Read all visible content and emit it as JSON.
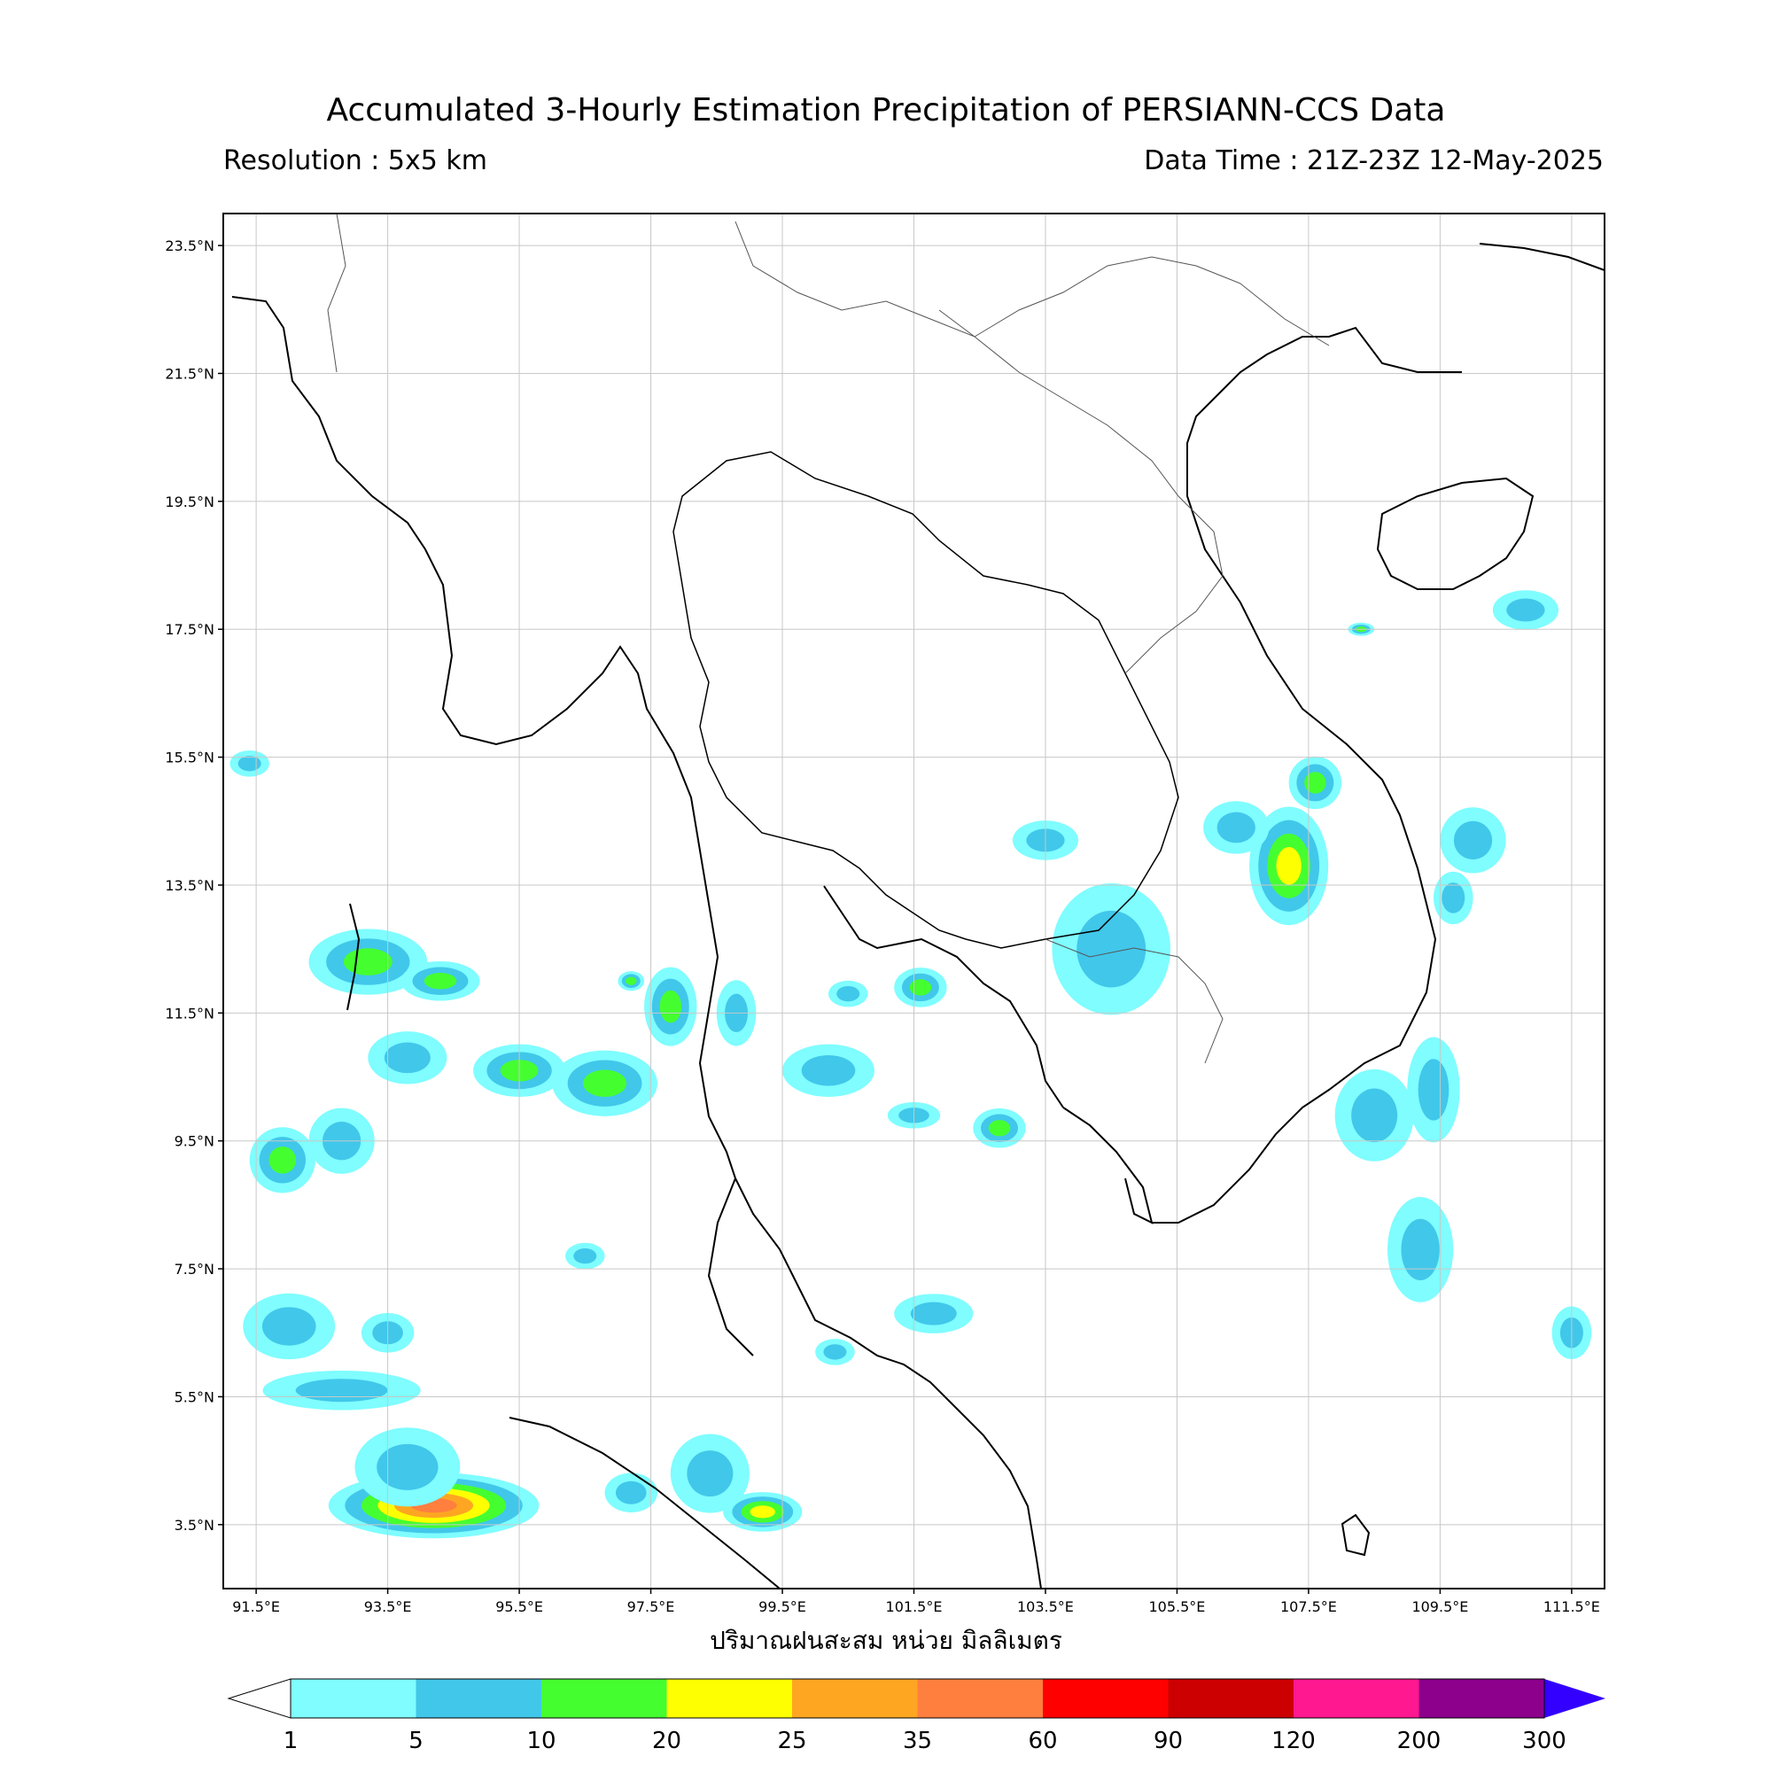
{
  "header": {
    "title": "Accumulated 3-Hourly Estimation Precipitation of PERSIANN-CCS Data",
    "resolution": "Resolution : 5x5 km",
    "data_time": "Data Time : 21Z-23Z 12-May-2025"
  },
  "map": {
    "lon_range": [
      91.0,
      112.0
    ],
    "lat_range": [
      2.5,
      23.5
    ],
    "lat_ticks": [
      {
        "value": 23.5,
        "label": "23.5°N"
      },
      {
        "value": 21.5,
        "label": "21.5°N"
      },
      {
        "value": 19.5,
        "label": "19.5°N"
      },
      {
        "value": 17.5,
        "label": "17.5°N"
      },
      {
        "value": 15.5,
        "label": "15.5°N"
      },
      {
        "value": 13.5,
        "label": "13.5°N"
      },
      {
        "value": 11.5,
        "label": "11.5°N"
      },
      {
        "value": 9.5,
        "label": "9.5°N"
      },
      {
        "value": 7.5,
        "label": "7.5°N"
      },
      {
        "value": 5.5,
        "label": "5.5°N"
      },
      {
        "value": 3.5,
        "label": "3.5°N"
      }
    ],
    "lon_ticks": [
      {
        "value": 91.5,
        "label": "91.5°E"
      },
      {
        "value": 93.5,
        "label": "93.5°E"
      },
      {
        "value": 95.5,
        "label": "95.5°E"
      },
      {
        "value": 97.5,
        "label": "97.5°E"
      },
      {
        "value": 99.5,
        "label": "99.5°E"
      },
      {
        "value": 101.5,
        "label": "101.5°E"
      },
      {
        "value": 103.5,
        "label": "103.5°E"
      },
      {
        "value": 105.5,
        "label": "105.5°E"
      },
      {
        "value": 107.5,
        "label": "107.5°E"
      },
      {
        "value": 109.5,
        "label": "109.5°E"
      },
      {
        "value": 111.5,
        "label": "111.5°E"
      }
    ],
    "grid": true,
    "rain_cells": [
      {
        "lon": 93.2,
        "lat": 12.3,
        "rx": 0.9,
        "ry": 0.5,
        "level": 2
      },
      {
        "lon": 94.3,
        "lat": 12.0,
        "rx": 0.6,
        "ry": 0.3,
        "level": 2
      },
      {
        "lon": 96.8,
        "lat": 10.4,
        "rx": 0.8,
        "ry": 0.5,
        "level": 2
      },
      {
        "lon": 95.5,
        "lat": 10.6,
        "rx": 0.7,
        "ry": 0.4,
        "level": 2
      },
      {
        "lon": 92.8,
        "lat": 9.5,
        "rx": 0.5,
        "ry": 0.5,
        "level": 1
      },
      {
        "lon": 93.8,
        "lat": 10.8,
        "rx": 0.6,
        "ry": 0.4,
        "level": 1
      },
      {
        "lon": 91.9,
        "lat": 9.2,
        "rx": 0.5,
        "ry": 0.5,
        "level": 2
      },
      {
        "lon": 97.8,
        "lat": 11.6,
        "rx": 0.4,
        "ry": 0.6,
        "level": 2
      },
      {
        "lon": 98.8,
        "lat": 11.5,
        "rx": 0.3,
        "ry": 0.5,
        "level": 1
      },
      {
        "lon": 100.2,
        "lat": 10.6,
        "rx": 0.7,
        "ry": 0.4,
        "level": 1
      },
      {
        "lon": 101.6,
        "lat": 11.9,
        "rx": 0.4,
        "ry": 0.3,
        "level": 2
      },
      {
        "lon": 100.5,
        "lat": 11.8,
        "rx": 0.3,
        "ry": 0.2,
        "level": 1
      },
      {
        "lon": 102.8,
        "lat": 9.7,
        "rx": 0.4,
        "ry": 0.3,
        "level": 2
      },
      {
        "lon": 101.5,
        "lat": 9.9,
        "rx": 0.4,
        "ry": 0.2,
        "level": 1
      },
      {
        "lon": 104.5,
        "lat": 12.5,
        "rx": 0.9,
        "ry": 1.0,
        "level": 1
      },
      {
        "lon": 103.5,
        "lat": 14.2,
        "rx": 0.5,
        "ry": 0.3,
        "level": 1
      },
      {
        "lon": 107.2,
        "lat": 13.8,
        "rx": 0.6,
        "ry": 0.9,
        "level": 3
      },
      {
        "lon": 106.4,
        "lat": 14.4,
        "rx": 0.5,
        "ry": 0.4,
        "level": 1
      },
      {
        "lon": 107.6,
        "lat": 15.1,
        "rx": 0.4,
        "ry": 0.4,
        "level": 2
      },
      {
        "lon": 110.0,
        "lat": 14.2,
        "rx": 0.5,
        "ry": 0.5,
        "level": 1
      },
      {
        "lon": 109.7,
        "lat": 13.3,
        "rx": 0.3,
        "ry": 0.4,
        "level": 1
      },
      {
        "lon": 108.5,
        "lat": 9.9,
        "rx": 0.6,
        "ry": 0.7,
        "level": 1
      },
      {
        "lon": 109.4,
        "lat": 10.3,
        "rx": 0.4,
        "ry": 0.8,
        "level": 1
      },
      {
        "lon": 109.2,
        "lat": 7.8,
        "rx": 0.5,
        "ry": 0.8,
        "level": 1
      },
      {
        "lon": 110.8,
        "lat": 17.8,
        "rx": 0.5,
        "ry": 0.3,
        "level": 1
      },
      {
        "lon": 108.3,
        "lat": 17.5,
        "rx": 0.2,
        "ry": 0.1,
        "level": 2
      },
      {
        "lon": 111.5,
        "lat": 6.5,
        "rx": 0.3,
        "ry": 0.4,
        "level": 1
      },
      {
        "lon": 94.2,
        "lat": 3.8,
        "rx": 1.6,
        "ry": 0.5,
        "level": 5
      },
      {
        "lon": 93.8,
        "lat": 4.4,
        "rx": 0.8,
        "ry": 0.6,
        "level": 1
      },
      {
        "lon": 92.8,
        "lat": 5.6,
        "rx": 1.2,
        "ry": 0.3,
        "level": 1
      },
      {
        "lon": 93.5,
        "lat": 6.5,
        "rx": 0.4,
        "ry": 0.3,
        "level": 1
      },
      {
        "lon": 92.0,
        "lat": 6.6,
        "rx": 0.7,
        "ry": 0.5,
        "level": 1
      },
      {
        "lon": 99.2,
        "lat": 3.7,
        "rx": 0.6,
        "ry": 0.3,
        "level": 3
      },
      {
        "lon": 98.4,
        "lat": 4.3,
        "rx": 0.6,
        "ry": 0.6,
        "level": 1
      },
      {
        "lon": 97.2,
        "lat": 4.0,
        "rx": 0.4,
        "ry": 0.3,
        "level": 1
      },
      {
        "lon": 96.5,
        "lat": 7.7,
        "rx": 0.3,
        "ry": 0.2,
        "level": 1
      },
      {
        "lon": 100.3,
        "lat": 6.2,
        "rx": 0.3,
        "ry": 0.2,
        "level": 1
      },
      {
        "lon": 101.8,
        "lat": 6.8,
        "rx": 0.6,
        "ry": 0.3,
        "level": 1
      },
      {
        "lon": 91.4,
        "lat": 15.4,
        "rx": 0.3,
        "ry": 0.2,
        "level": 1
      },
      {
        "lon": 97.2,
        "lat": 12.0,
        "rx": 0.2,
        "ry": 0.15,
        "level": 2
      }
    ]
  },
  "xlabel": "ปริมาณฝนสะสม หน่วย มิลลิเมตร",
  "legend": {
    "bins": [
      {
        "label": "1",
        "color": "#7ffdff"
      },
      {
        "label": "5",
        "color": "#41c7ea"
      },
      {
        "label": "10",
        "color": "#45fe30"
      },
      {
        "label": "20",
        "color": "#feff00"
      },
      {
        "label": "25",
        "color": "#fea622"
      },
      {
        "label": "35",
        "color": "#ff7f3f"
      },
      {
        "label": "60",
        "color": "#ff0000"
      },
      {
        "label": "90",
        "color": "#cc0000"
      },
      {
        "label": "120",
        "color": "#ff1890"
      },
      {
        "label": "200",
        "color": "#8c008c"
      }
    ],
    "top_label": "300",
    "under_color": "#ffffff",
    "over_color": "#3300ff"
  }
}
